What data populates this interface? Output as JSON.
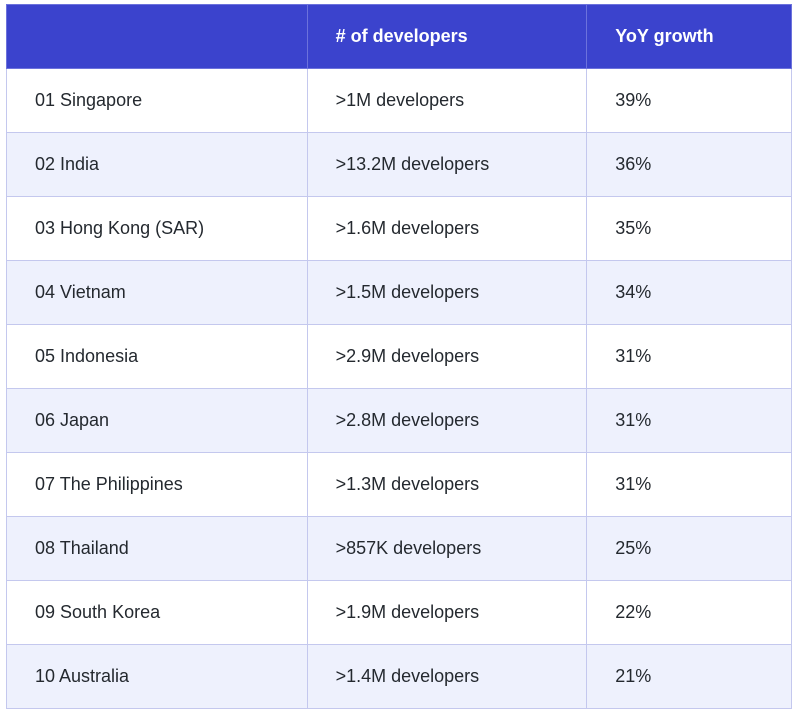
{
  "table": {
    "headers": [
      "",
      "# of developers",
      "YoY growth"
    ],
    "rows": [
      {
        "country": "01 Singapore",
        "developers": ">1M developers",
        "growth": "39%"
      },
      {
        "country": "02 India",
        "developers": ">13.2M developers",
        "growth": "36%"
      },
      {
        "country": "03 Hong Kong (SAR)",
        "developers": ">1.6M developers",
        "growth": "35%"
      },
      {
        "country": "04 Vietnam",
        "developers": ">1.5M developers",
        "growth": "34%"
      },
      {
        "country": "05 Indonesia",
        "developers": ">2.9M developers",
        "growth": "31%"
      },
      {
        "country": "06 Japan",
        "developers": ">2.8M developers",
        "growth": "31%"
      },
      {
        "country": "07 The Philippines",
        "developers": ">1.3M developers",
        "growth": "31%"
      },
      {
        "country": "08 Thailand",
        "developers": ">857K developers",
        "growth": "25%"
      },
      {
        "country": "09 South Korea",
        "developers": ">1.9M developers",
        "growth": "22%"
      },
      {
        "country": "10 Australia",
        "developers": ">1.4M developers",
        "growth": "21%"
      }
    ]
  },
  "colors": {
    "header_bg": "#3b43cd",
    "header_text": "#ffffff",
    "row_alt_bg": "#eef1fd",
    "border": "#c4c8ee"
  }
}
